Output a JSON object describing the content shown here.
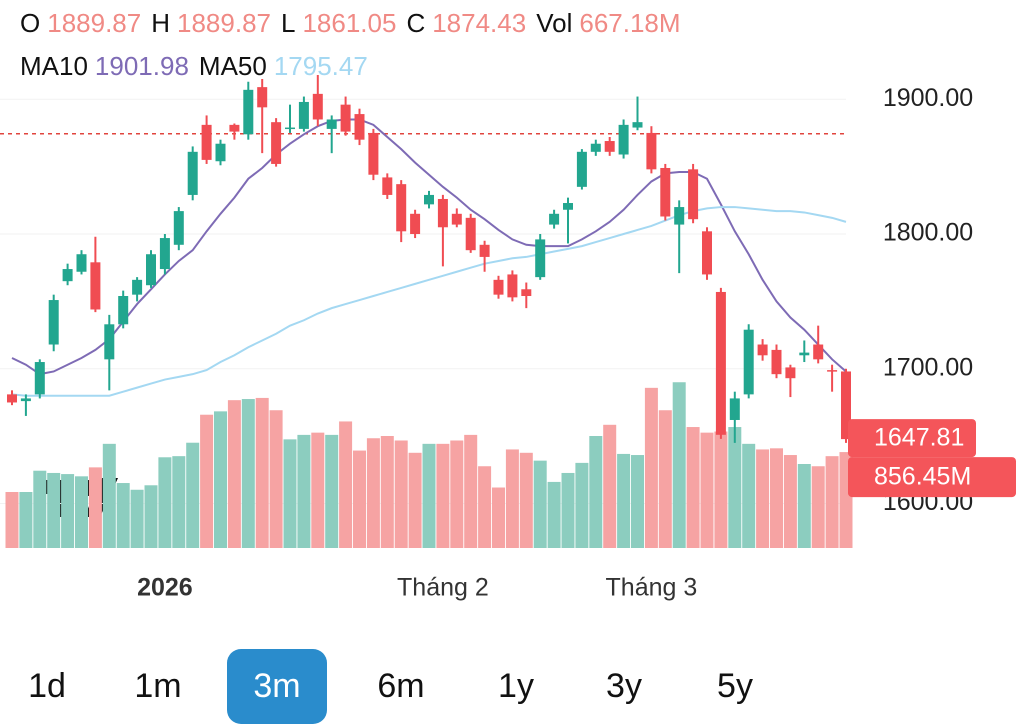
{
  "chart_data": {
    "type": "candlestick",
    "legend_ohlc": [
      {
        "label": "O",
        "value": "1889.87"
      },
      {
        "label": "H",
        "value": "1889.87"
      },
      {
        "label": "L",
        "value": "1861.05"
      },
      {
        "label": "C",
        "value": "1874.43"
      },
      {
        "label": "Vol",
        "value": "667.18M"
      }
    ],
    "legend_ma": [
      "1901.98",
      "1795.47"
    ],
    "categories": [
      null,
      null,
      null,
      null,
      null,
      null,
      null,
      null,
      null,
      null,
      null,
      "2026",
      null,
      null,
      null,
      null,
      null,
      null,
      null,
      null,
      null,
      null,
      null,
      null,
      null,
      null,
      null,
      null,
      null,
      null,
      null,
      "Tháng 2",
      null,
      null,
      null,
      null,
      null,
      null,
      null,
      null,
      null,
      null,
      null,
      null,
      null,
      null,
      "Tháng 3",
      null,
      null,
      null,
      null,
      null,
      null,
      null,
      null,
      null,
      null,
      null,
      null,
      null,
      null
    ],
    "open": [
      1681,
      1676,
      1681,
      1718,
      1765,
      1772,
      1779,
      1707,
      1733,
      1755,
      1762,
      1774,
      1792,
      1829,
      1881,
      1854,
      1881,
      1874,
      1909,
      1883,
      1878,
      1878,
      1904,
      1878,
      1896,
      1889,
      1875,
      1842,
      1837,
      1815,
      1822,
      1826,
      1815,
      1812,
      1792,
      1766,
      1770,
      1759,
      1768,
      1807,
      1818,
      1835,
      1861,
      1869,
      1859,
      1879,
      1875,
      1849,
      1807,
      1848,
      1802,
      1757,
      1662,
      1681,
      1718,
      1714,
      1701,
      1710,
      1718,
      1699,
      1698
    ],
    "high": [
      1684,
      1681,
      1707,
      1755,
      1778,
      1788,
      1798,
      1740,
      1758,
      1768,
      1788,
      1800,
      1820,
      1865,
      1888,
      1870,
      1882,
      1913,
      1915,
      1886,
      1896,
      1902,
      1918,
      1888,
      1902,
      1893,
      1878,
      1845,
      1840,
      1818,
      1832,
      1829,
      1819,
      1815,
      1795,
      1769,
      1773,
      1764,
      1800,
      1818,
      1827,
      1863,
      1870,
      1872,
      1885,
      1902,
      1880,
      1852,
      1825,
      1852,
      1805,
      1760,
      1683,
      1733,
      1722,
      1718,
      1703,
      1721,
      1732,
      1703,
      1700
    ],
    "low": [
      1673,
      1665,
      1678,
      1713,
      1762,
      1770,
      1742,
      1684,
      1730,
      1750,
      1760,
      1770,
      1788,
      1825,
      1852,
      1851,
      1870,
      1870,
      1860,
      1850,
      1875,
      1876,
      1880,
      1860,
      1873,
      1866,
      1840,
      1826,
      1794,
      1797,
      1819,
      1776,
      1805,
      1786,
      1772,
      1752,
      1750,
      1745,
      1766,
      1804,
      1793,
      1833,
      1858,
      1858,
      1856,
      1877,
      1845,
      1810,
      1771,
      1808,
      1766,
      1648,
      1645,
      1678,
      1706,
      1693,
      1679,
      1705,
      1704,
      1683,
      1645
    ],
    "close": [
      1675,
      1678,
      1705,
      1751,
      1774,
      1785,
      1744,
      1733,
      1754,
      1766,
      1785,
      1797,
      1817,
      1861,
      1855,
      1867,
      1876,
      1907,
      1894,
      1852,
      1879,
      1898,
      1885,
      1885,
      1876,
      1870,
      1844,
      1829,
      1802,
      1800,
      1829,
      1805,
      1807,
      1788,
      1783,
      1755,
      1753,
      1754,
      1796,
      1815,
      1823,
      1861,
      1867,
      1861,
      1881,
      1883,
      1848,
      1813,
      1820,
      1811,
      1770,
      1651,
      1678,
      1729,
      1710,
      1696,
      1693,
      1712,
      1707,
      1698,
      1647.81
    ],
    "volume": [
      500,
      500,
      690,
      670,
      660,
      640,
      720,
      930,
      580,
      520,
      560,
      810,
      820,
      940,
      1190,
      1220,
      1320,
      1330,
      1340,
      1230,
      970,
      1010,
      1030,
      1010,
      1130,
      870,
      980,
      1000,
      960,
      850,
      930,
      930,
      960,
      1010,
      730,
      540,
      880,
      850,
      780,
      590,
      670,
      760,
      1000,
      1100,
      840,
      830,
      1430,
      1230,
      1480,
      1080,
      1030,
      1040,
      1080,
      930,
      880,
      890,
      830,
      750,
      730,
      820,
      856.45
    ],
    "series": [
      {
        "name": "MA10",
        "color": "#7e6bb5",
        "values": [
          1708,
          1703,
          1696,
          1698,
          1703,
          1708,
          1714,
          1722,
          1735,
          1748,
          1759,
          1770,
          1780,
          1788,
          1802,
          1815,
          1827,
          1841,
          1849,
          1859,
          1867,
          1874,
          1880,
          1884,
          1885,
          1885,
          1881,
          1872,
          1863,
          1853,
          1844,
          1835,
          1827,
          1818,
          1811,
          1803,
          1796,
          1792,
          1791,
          1791,
          1791,
          1796,
          1802,
          1809,
          1818,
          1829,
          1839,
          1845,
          1846,
          1846,
          1841,
          1822,
          1802,
          1785,
          1766,
          1750,
          1738,
          1729,
          1718,
          1707,
          1698
        ]
      },
      {
        "name": "MA50",
        "color": "#a4d8f2",
        "values": [
          1681,
          1680,
          1680,
          1680,
          1680,
          1680,
          1680,
          1680,
          1683,
          1686,
          1689,
          1692,
          1694,
          1696,
          1699,
          1705,
          1710,
          1716,
          1721,
          1726,
          1732,
          1736,
          1741,
          1745,
          1748,
          1751,
          1754,
          1757,
          1760,
          1763,
          1766,
          1769,
          1772,
          1775,
          1778,
          1780,
          1782,
          1783,
          1785,
          1787,
          1789,
          1791,
          1794,
          1797,
          1800,
          1803,
          1806,
          1810,
          1814,
          1817,
          1819,
          1820,
          1820,
          1819,
          1818,
          1817,
          1817,
          1816,
          1814,
          1812,
          1809
        ]
      }
    ],
    "up_color": "#22a68f",
    "down_color": "#f04c52",
    "up_volume_color": "#8ccdbf",
    "down_volume_color": "#f6a3a3",
    "reference_line": 1874.43,
    "last_price_label": "1647.81",
    "last_volume_label": "856.45M",
    "ylim": [
      1567,
      1918
    ],
    "yticks": [
      {
        "value": 1600,
        "label": "1600.00"
      },
      {
        "value": 1700,
        "label": "1700.00"
      },
      {
        "value": 1800,
        "label": "1800.00"
      },
      {
        "value": 1900,
        "label": "1900.00"
      }
    ],
    "grid": true
  },
  "range_buttons": [
    "1d",
    "1m",
    "3m",
    "6m",
    "1y",
    "3y",
    "5y"
  ],
  "selected_range": 2
}
